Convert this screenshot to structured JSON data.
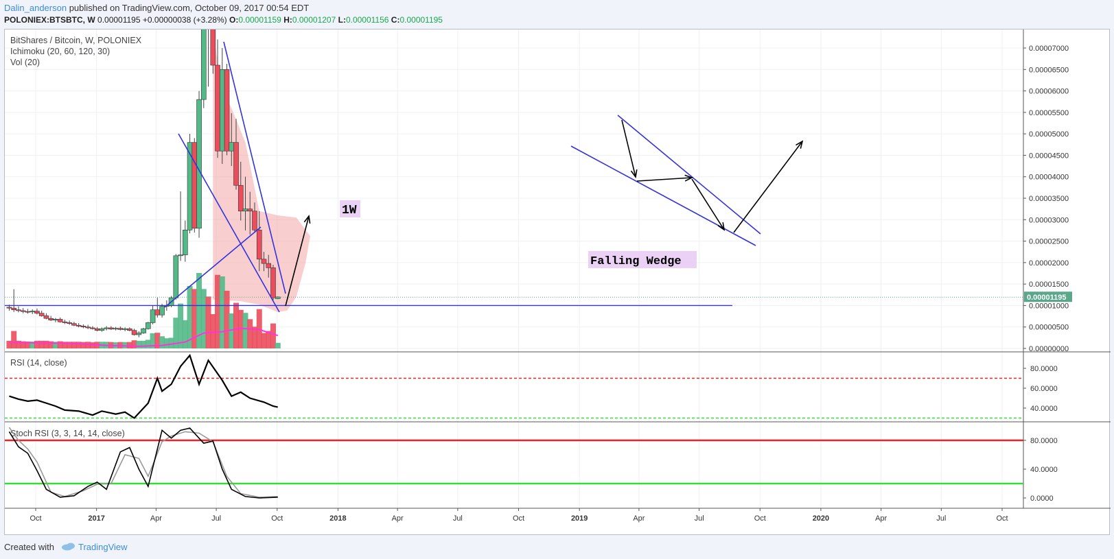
{
  "header": {
    "author": "Dalin_anderson",
    "published": "published on TradingView.com, October 09, 2017 00:54 EDT",
    "symbol": "POLONIEX:BTSBTC, W",
    "last": "0.00001195",
    "change": "+0.00000038 (+3.28%)",
    "o_label": "O:",
    "o": "0.00001159",
    "h_label": "H:",
    "h": "0.00001207",
    "l_label": "L:",
    "l": "0.00001156",
    "c_label": "C:",
    "c": "0.00001195"
  },
  "footer": {
    "created_with": "Created with",
    "brand": "TradingView"
  },
  "colors": {
    "up": "#53b987",
    "down": "#eb4d5c",
    "trend": "#3333dd",
    "cloud": "#f4a6a6",
    "vol_ma": "#ff33dd",
    "rsi_over": "#ee2222",
    "rsi_under": "#33dd33",
    "stoch_k": "#000000",
    "stoch_d": "#999999",
    "annot_bg": "#e6c6f2",
    "last_price": "#5aa78a"
  },
  "chart_data": [
    {
      "type": "candlestick",
      "legend": [
        "BitShares / Bitcoin, W, POLONIEX",
        "Ichimoku (20, 60, 120, 30)",
        "Vol (20)"
      ],
      "last_price_label": "0.00001195",
      "y_ticks": [
        "0.00007000",
        "0.00006500",
        "0.00006000",
        "0.00005500",
        "0.00005000",
        "0.00004500",
        "0.00004000",
        "0.00003500",
        "0.00003000",
        "0.00002500",
        "0.00002000",
        "0.00001500",
        "0.00001000",
        "0.00000500",
        "0.00000000"
      ],
      "ylim": [
        0,
        7.45e-05
      ],
      "x_ticks": [
        "Oct",
        "2017",
        "Apr",
        "Jul",
        "Oct",
        "2018",
        "Apr",
        "Jul",
        "Oct",
        "2019",
        "Apr",
        "Jul",
        "Oct",
        "2020",
        "Apr",
        "Jul",
        "Oct"
      ],
      "x_tick_dates": [
        "2016-10-01",
        "2017-01-01",
        "2017-04-01",
        "2017-07-01",
        "2017-10-01",
        "2018-01-01",
        "2018-04-01",
        "2018-07-01",
        "2018-10-01",
        "2019-01-01",
        "2019-04-01",
        "2019-07-01",
        "2019-10-01",
        "2020-01-01",
        "2020-04-01",
        "2020-07-01",
        "2020-10-01"
      ],
      "candles": [
        [
          "2016-08-22",
          9.6e-06,
          1.02e-05,
          8.8e-06,
          9.4e-06
        ],
        [
          "2016-08-29",
          9.4e-06,
          1.38e-05,
          8.5e-06,
          9e-06
        ],
        [
          "2016-09-05",
          9e-06,
          9.8e-06,
          8.4e-06,
          8.8e-06
        ],
        [
          "2016-09-12",
          8.8e-06,
          9.4e-06,
          8.2e-06,
          8.6e-06
        ],
        [
          "2016-09-19",
          8.6e-06,
          9.2e-06,
          8.1e-06,
          8.5e-06
        ],
        [
          "2016-09-26",
          8.5e-06,
          9.1e-06,
          8e-06,
          8.7e-06
        ],
        [
          "2016-10-03",
          8.7e-06,
          9.3e-06,
          7.9e-06,
          8.2e-06
        ],
        [
          "2016-10-10",
          8.2e-06,
          8.8e-06,
          7.4e-06,
          7.6e-06
        ],
        [
          "2016-10-17",
          7.6e-06,
          8.2e-06,
          6.8e-06,
          7e-06
        ],
        [
          "2016-10-24",
          7e-06,
          7.6e-06,
          6.4e-06,
          6.6e-06
        ],
        [
          "2016-10-31",
          6.6e-06,
          7.1e-06,
          6.1e-06,
          6.8e-06
        ],
        [
          "2016-11-07",
          6.8e-06,
          7.2e-06,
          6e-06,
          6.2e-06
        ],
        [
          "2016-11-14",
          6.2e-06,
          6.7e-06,
          5.7e-06,
          6e-06
        ],
        [
          "2016-11-21",
          6e-06,
          6.5e-06,
          5.5e-06,
          5.8e-06
        ],
        [
          "2016-11-28",
          5.8e-06,
          6.2e-06,
          5.2e-06,
          5.4e-06
        ],
        [
          "2016-12-05",
          5.4e-06,
          5.9e-06,
          4.9e-06,
          5.2e-06
        ],
        [
          "2016-12-12",
          5.2e-06,
          5.6e-06,
          4.7e-06,
          5e-06
        ],
        [
          "2016-12-19",
          5e-06,
          5.5e-06,
          4.5e-06,
          4.8e-06
        ],
        [
          "2016-12-26",
          4.8e-06,
          5.2e-06,
          4.4e-06,
          4.6e-06
        ],
        [
          "2017-01-02",
          4.6e-06,
          5e-06,
          4e-06,
          4.2e-06
        ],
        [
          "2017-01-09",
          4.2e-06,
          4.9e-06,
          3.9e-06,
          4.6e-06
        ],
        [
          "2017-01-16",
          4.6e-06,
          5.2e-06,
          4.2e-06,
          4.8e-06
        ],
        [
          "2017-01-23",
          4.8e-06,
          5.2e-06,
          4.3e-06,
          4.5e-06
        ],
        [
          "2017-01-30",
          4.5e-06,
          5e-06,
          4.2e-06,
          4.7e-06
        ],
        [
          "2017-02-06",
          4.7e-06,
          5.1e-06,
          4.2e-06,
          4.4e-06
        ],
        [
          "2017-02-13",
          4.4e-06,
          4.9e-06,
          4e-06,
          4.6e-06
        ],
        [
          "2017-02-20",
          4.6e-06,
          4.9e-06,
          4e-06,
          4.2e-06
        ],
        [
          "2017-02-27",
          4.2e-06,
          4.6e-06,
          3e-06,
          3.2e-06
        ],
        [
          "2017-03-06",
          3.2e-06,
          4e-06,
          2.6e-06,
          3.6e-06
        ],
        [
          "2017-03-13",
          3.6e-06,
          4.8e-06,
          3.4e-06,
          4.6e-06
        ],
        [
          "2017-03-20",
          4.6e-06,
          6.2e-06,
          4.4e-06,
          6e-06
        ],
        [
          "2017-03-27",
          6e-06,
          1e-05,
          5.6e-06,
          9e-06
        ],
        [
          "2017-04-03",
          9e-06,
          1.18e-05,
          7.2e-06,
          7.8e-06
        ],
        [
          "2017-04-10",
          7.8e-06,
          1.04e-05,
          7.2e-06,
          9.8e-06
        ],
        [
          "2017-04-17",
          9.8e-06,
          1.12e-05,
          8.8e-06,
          1e-05
        ],
        [
          "2017-04-24",
          1e-05,
          1.22e-05,
          9.6e-06,
          1.18e-05
        ],
        [
          "2017-05-01",
          1.18e-05,
          2.2e-05,
          1.14e-05,
          2.16e-05
        ],
        [
          "2017-05-08",
          2.16e-05,
          3.66e-05,
          2.04e-05,
          2.18e-05
        ],
        [
          "2017-05-15",
          2.18e-05,
          2.98e-05,
          2.02e-05,
          2.76e-05
        ],
        [
          "2017-05-22",
          2.76e-05,
          5e-05,
          2.68e-05,
          4.8e-05
        ],
        [
          "2017-05-29",
          4.8e-05,
          4.9e-05,
          2.7e-05,
          2.8e-05
        ],
        [
          "2017-06-05",
          2.8e-05,
          6e-05,
          2.58e-05,
          5.8e-05
        ],
        [
          "2017-06-12",
          5.8e-05,
          7.8e-05,
          5.6e-05,
          7.6e-05
        ],
        [
          "2017-06-19",
          7.6e-05,
          8e-05,
          6.1e-05,
          7.5e-05
        ],
        [
          "2017-06-26",
          7.5e-05,
          7.6e-05,
          6.4e-05,
          6.6e-05
        ],
        [
          "2017-07-03",
          6.6e-05,
          7.2e-05,
          4.44e-05,
          4.6e-05
        ],
        [
          "2017-07-10",
          4.6e-05,
          7e-05,
          4.3e-05,
          6.5e-05
        ],
        [
          "2017-07-17",
          6.5e-05,
          6.63e-05,
          4.5e-05,
          4.6e-05
        ],
        [
          "2017-07-24",
          4.6e-05,
          5.48e-05,
          4.25e-05,
          4.8e-05
        ],
        [
          "2017-07-31",
          4.8e-05,
          5.35e-05,
          3.7e-05,
          3.8e-05
        ],
        [
          "2017-08-07",
          3.8e-05,
          4.35e-05,
          2.98e-05,
          3.2e-05
        ],
        [
          "2017-08-14",
          3.2e-05,
          4e-05,
          2.75e-05,
          3.25e-05
        ],
        [
          "2017-08-21",
          3.25e-05,
          3.65e-05,
          2.65e-05,
          3.2e-05
        ],
        [
          "2017-08-28",
          3.2e-05,
          3.4e-05,
          2.7e-05,
          2.76e-05
        ],
        [
          "2017-09-04",
          2.76e-05,
          3.2e-05,
          1.8e-05,
          2.08e-05
        ],
        [
          "2017-09-11",
          2.08e-05,
          2.25e-05,
          1.8e-05,
          1.98e-05
        ],
        [
          "2017-09-18",
          1.98e-05,
          2.18e-05,
          1.65e-05,
          1.88e-05
        ],
        [
          "2017-09-25",
          1.88e-05,
          1.95e-05,
          1.12e-05,
          1.18e-05
        ],
        [
          "2017-10-02",
          1.16e-05,
          1.21e-05,
          1.15e-05,
          1.2e-05
        ]
      ],
      "vol_ma": [
        [
          "2016-08-22",
          1.4e-06
        ],
        [
          "2016-09-26",
          1.3e-06
        ],
        [
          "2016-11-21",
          1.2e-06
        ],
        [
          "2017-01-16",
          7e-07
        ],
        [
          "2017-03-06",
          5e-07
        ],
        [
          "2017-04-10",
          7e-07
        ],
        [
          "2017-05-15",
          1.5e-06
        ],
        [
          "2017-06-12",
          3.6e-06
        ],
        [
          "2017-07-10",
          3.9e-06
        ],
        [
          "2017-08-07",
          4.7e-06
        ],
        [
          "2017-09-04",
          4.4e-06
        ],
        [
          "2017-10-02",
          3e-06
        ]
      ],
      "horizontal_line": 1e-05
    },
    {
      "type": "line",
      "legend": "RSI (14, close)",
      "y_ticks": [
        "80.0000",
        "60.0000",
        "40.0000"
      ],
      "ylim": [
        28,
        98
      ],
      "levels": [
        70,
        30
      ],
      "series": [
        {
          "values": [
            [
              "2016-08-22",
              52
            ],
            [
              "2016-09-05",
              49
            ],
            [
              "2016-09-19",
              47
            ],
            [
              "2016-10-03",
              48
            ],
            [
              "2016-10-17",
              45
            ],
            [
              "2016-10-31",
              42
            ],
            [
              "2016-11-14",
              38
            ],
            [
              "2016-12-05",
              37
            ],
            [
              "2016-12-26",
              33
            ],
            [
              "2017-01-09",
              37
            ],
            [
              "2017-01-30",
              34
            ],
            [
              "2017-02-13",
              36
            ],
            [
              "2017-02-27",
              30
            ],
            [
              "2017-03-20",
              45
            ],
            [
              "2017-04-03",
              70
            ],
            [
              "2017-04-10",
              57
            ],
            [
              "2017-04-24",
              64
            ],
            [
              "2017-05-08",
              82
            ],
            [
              "2017-05-22",
              93
            ],
            [
              "2017-06-05",
              64
            ],
            [
              "2017-06-19",
              88
            ],
            [
              "2017-07-10",
              68
            ],
            [
              "2017-07-24",
              52
            ],
            [
              "2017-08-07",
              56
            ],
            [
              "2017-08-21",
              50
            ],
            [
              "2017-09-11",
              46
            ],
            [
              "2017-09-25",
              42
            ],
            [
              "2017-10-02",
              41
            ]
          ]
        }
      ]
    },
    {
      "type": "line",
      "legend": "Stoch RSI (3, 3, 14, 14, close)",
      "y_ticks": [
        "80.0000",
        "40.0000",
        "0.0000"
      ],
      "ylim": [
        -6,
        105
      ],
      "levels": [
        80,
        20
      ],
      "series": [
        {
          "values": [
            [
              "2016-08-22",
              92
            ],
            [
              "2016-09-05",
              71
            ],
            [
              "2016-09-19",
              62
            ],
            [
              "2016-10-03",
              38
            ],
            [
              "2016-10-17",
              12
            ],
            [
              "2016-11-07",
              1
            ],
            [
              "2016-11-28",
              3
            ],
            [
              "2016-12-19",
              16
            ],
            [
              "2017-01-02",
              22
            ],
            [
              "2017-01-16",
              12
            ],
            [
              "2017-02-06",
              64
            ],
            [
              "2017-02-20",
              70
            ],
            [
              "2017-03-06",
              40
            ],
            [
              "2017-03-20",
              16
            ],
            [
              "2017-04-10",
              94
            ],
            [
              "2017-04-24",
              83
            ],
            [
              "2017-05-08",
              94
            ],
            [
              "2017-05-22",
              97
            ],
            [
              "2017-06-12",
              76
            ],
            [
              "2017-06-26",
              79
            ],
            [
              "2017-07-10",
              40
            ],
            [
              "2017-07-24",
              12
            ],
            [
              "2017-08-14",
              2
            ],
            [
              "2017-09-04",
              0
            ],
            [
              "2017-10-02",
              1
            ]
          ]
        },
        {
          "values": [
            [
              "2016-08-22",
              98
            ],
            [
              "2016-09-05",
              80
            ],
            [
              "2016-09-19",
              68
            ],
            [
              "2016-10-03",
              50
            ],
            [
              "2016-10-24",
              8
            ],
            [
              "2016-11-14",
              2
            ],
            [
              "2016-12-12",
              10
            ],
            [
              "2017-01-02",
              19
            ],
            [
              "2017-01-23",
              20
            ],
            [
              "2017-02-13",
              60
            ],
            [
              "2017-03-06",
              55
            ],
            [
              "2017-03-20",
              30
            ],
            [
              "2017-04-10",
              78
            ],
            [
              "2017-04-24",
              86
            ],
            [
              "2017-05-15",
              92
            ],
            [
              "2017-06-05",
              90
            ],
            [
              "2017-06-26",
              78
            ],
            [
              "2017-07-17",
              30
            ],
            [
              "2017-08-07",
              6
            ],
            [
              "2017-09-04",
              1
            ],
            [
              "2017-10-02",
              2
            ]
          ]
        }
      ]
    }
  ],
  "annotations": {
    "label_1w": "1W",
    "label_wedge": "Falling Wedge"
  }
}
